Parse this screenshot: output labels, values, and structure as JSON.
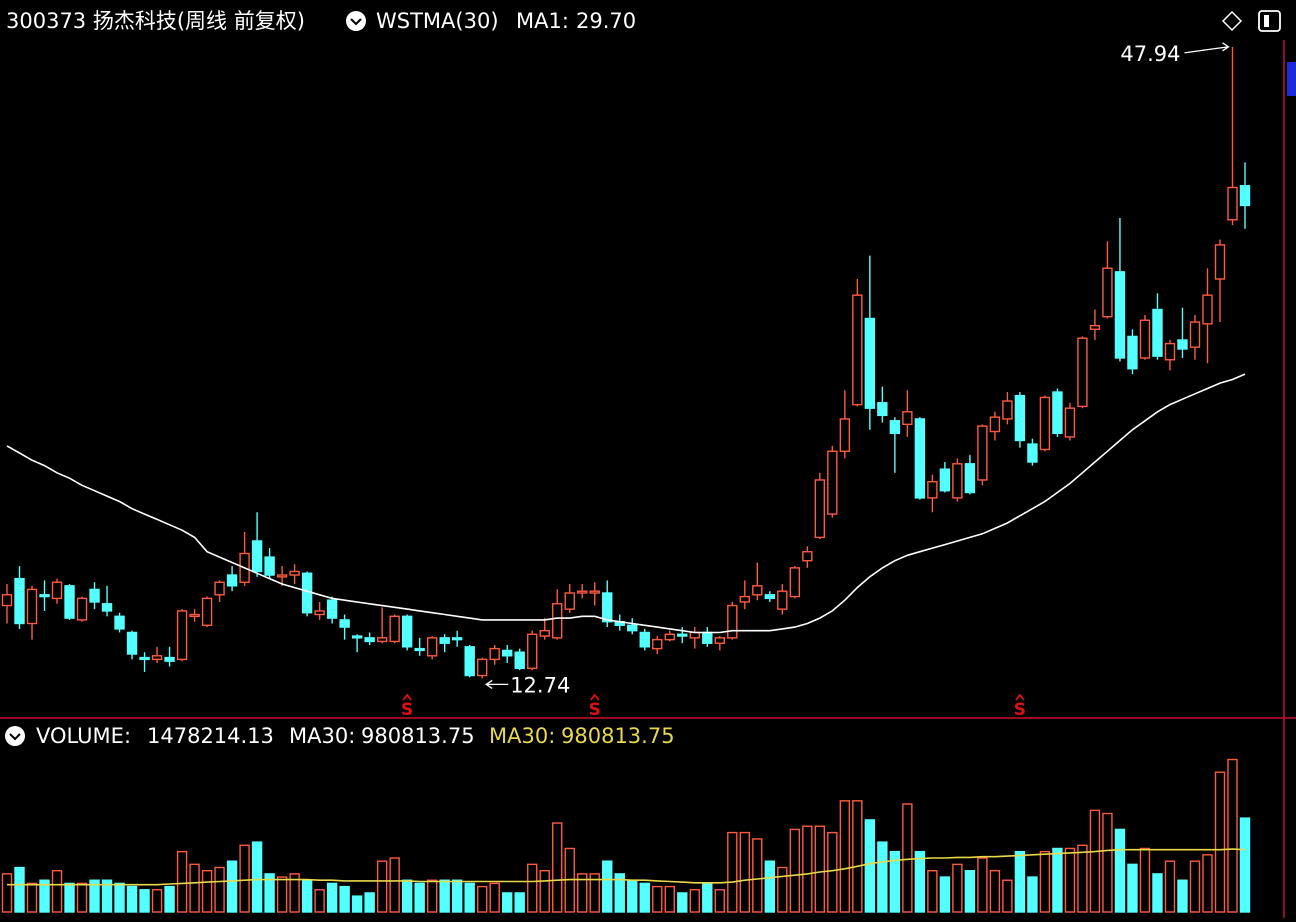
{
  "chart_data": [
    {
      "type": "candlestick",
      "title": "300373 扬杰科技(周线 前复权)",
      "indicator": "WSTMA(30)",
      "ma_name": "MA1:",
      "ma_value_label": "29.70",
      "up_color": "#ff5a3c",
      "down_color": "#54ffff",
      "ma_color": "#ffffff",
      "ylim": [
        10.7,
        48.6
      ],
      "open": [
        16.8,
        18.3,
        15.8,
        17.4,
        17.2,
        17.9,
        16.0,
        17.7,
        16.9,
        16.2,
        15.3,
        13.9,
        13.8,
        13.9,
        13.8,
        16.2,
        15.7,
        17.4,
        18.5,
        18.1,
        20.4,
        19.5,
        18.4,
        18.5,
        18.6,
        16.3,
        17.1,
        16.0,
        15.1,
        15.0,
        14.8,
        14.8,
        16.2,
        14.4,
        14.0,
        15.0,
        15.0,
        14.5,
        12.9,
        13.8,
        14.3,
        14.2,
        13.3,
        15.1,
        15.0,
        16.6,
        17.5,
        17.5,
        17.5,
        15.9,
        15.7,
        15.3,
        14.4,
        14.9,
        15.2,
        15.0,
        15.3,
        14.7,
        15.0,
        17.0,
        17.4,
        17.4,
        16.6,
        17.3,
        19.3,
        20.6,
        21.9,
        25.4,
        28.0,
        32.8,
        28.1,
        27.1,
        26.9,
        27.2,
        22.8,
        24.4,
        22.8,
        24.7,
        23.8,
        26.5,
        27.2,
        28.5,
        25.8,
        25.5,
        28.7,
        26.2,
        27.9,
        32.2,
        32.9,
        35.4,
        31.8,
        30.6,
        33.3,
        30.5,
        31.6,
        31.2,
        32.5,
        35.0,
        38.3,
        40.2
      ],
      "high": [
        18.0,
        19.0,
        17.9,
        18.2,
        18.3,
        18.0,
        17.3,
        18.1,
        17.9,
        16.4,
        15.4,
        14.2,
        14.5,
        14.5,
        16.6,
        16.6,
        17.3,
        18.2,
        19.0,
        20.9,
        22.0,
        20.0,
        19.0,
        19.1,
        18.7,
        17.0,
        17.3,
        16.3,
        15.2,
        15.3,
        16.7,
        16.3,
        16.3,
        15.0,
        15.1,
        15.2,
        15.4,
        14.6,
        13.9,
        14.6,
        14.6,
        14.4,
        15.4,
        16.1,
        17.7,
        18.0,
        18.0,
        18.1,
        18.2,
        16.3,
        16.1,
        15.5,
        15.1,
        15.4,
        15.6,
        15.6,
        15.6,
        15.1,
        17.0,
        18.2,
        19.2,
        17.6,
        18.0,
        19.0,
        20.1,
        24.2,
        25.7,
        28.8,
        35.0,
        36.3,
        29.0,
        27.3,
        28.8,
        27.3,
        24.1,
        24.8,
        25.0,
        25.2,
        26.9,
        27.6,
        28.7,
        28.7,
        26.1,
        28.5,
        28.9,
        28.1,
        31.8,
        33.3,
        37.1,
        38.4,
        32.2,
        33.0,
        34.2,
        31.6,
        33.4,
        33.0,
        35.6,
        37.2,
        47.94,
        41.5
      ],
      "low": [
        15.8,
        15.5,
        14.9,
        16.5,
        16.9,
        16.0,
        15.9,
        16.6,
        16.2,
        15.3,
        13.8,
        13.1,
        13.6,
        13.4,
        13.7,
        15.9,
        15.6,
        17.0,
        17.6,
        17.9,
        18.4,
        18.3,
        17.9,
        18.0,
        16.2,
        16.0,
        15.8,
        14.9,
        14.2,
        14.6,
        14.7,
        14.7,
        14.3,
        14.0,
        13.8,
        14.2,
        14.5,
        12.8,
        12.74,
        13.5,
        13.6,
        13.2,
        13.2,
        14.9,
        14.9,
        16.4,
        17.2,
        16.8,
        15.6,
        15.4,
        15.2,
        14.3,
        14.1,
        14.8,
        14.7,
        14.4,
        14.5,
        14.3,
        14.9,
        16.6,
        17.1,
        17.0,
        16.3,
        17.2,
        18.9,
        20.5,
        21.7,
        25.0,
        27.9,
        26.6,
        27.0,
        24.2,
        26.2,
        22.7,
        22.0,
        23.1,
        22.6,
        23.0,
        23.5,
        26.0,
        26.9,
        25.6,
        24.6,
        25.4,
        26.2,
        26.0,
        27.8,
        31.6,
        32.8,
        30.4,
        29.7,
        30.5,
        30.5,
        29.9,
        30.6,
        30.5,
        30.3,
        32.6,
        38.0,
        37.8
      ],
      "close": [
        17.4,
        15.8,
        17.7,
        17.3,
        18.1,
        16.1,
        17.2,
        17.0,
        16.5,
        15.5,
        14.1,
        13.8,
        14.0,
        13.7,
        16.5,
        16.3,
        17.2,
        18.1,
        17.9,
        19.7,
        18.7,
        18.5,
        18.5,
        18.7,
        16.4,
        16.5,
        16.1,
        15.6,
        15.0,
        14.8,
        15.0,
        16.2,
        14.5,
        14.3,
        15.0,
        14.7,
        14.9,
        12.9,
        13.8,
        14.4,
        14.0,
        13.3,
        15.2,
        15.4,
        16.9,
        17.5,
        17.6,
        17.6,
        15.9,
        15.7,
        15.4,
        14.5,
        14.9,
        15.2,
        15.1,
        15.3,
        14.7,
        15.0,
        16.8,
        17.3,
        17.9,
        17.2,
        17.6,
        18.9,
        19.8,
        23.8,
        25.4,
        27.2,
        34.1,
        27.8,
        27.4,
        26.4,
        27.6,
        22.8,
        23.7,
        23.2,
        24.7,
        23.1,
        26.8,
        27.3,
        28.2,
        26.0,
        24.8,
        28.4,
        26.4,
        27.8,
        31.7,
        32.4,
        35.6,
        30.6,
        30.0,
        32.7,
        30.7,
        31.4,
        31.1,
        32.6,
        34.1,
        36.9,
        40.1,
        39.1
      ],
      "ma": [
        25.7,
        25.3,
        24.9,
        24.6,
        24.2,
        23.9,
        23.5,
        23.2,
        22.9,
        22.6,
        22.2,
        21.9,
        21.6,
        21.3,
        21.0,
        20.6,
        19.8,
        19.5,
        19.2,
        18.9,
        18.6,
        18.3,
        18.0,
        17.8,
        17.6,
        17.4,
        17.2,
        17.1,
        17.0,
        16.9,
        16.8,
        16.7,
        16.6,
        16.5,
        16.4,
        16.3,
        16.2,
        16.1,
        16.0,
        16.0,
        16.0,
        16.0,
        16.0,
        16.0,
        16.1,
        16.1,
        16.2,
        16.2,
        16.0,
        15.9,
        15.8,
        15.7,
        15.6,
        15.5,
        15.4,
        15.3,
        15.3,
        15.3,
        15.4,
        15.4,
        15.4,
        15.4,
        15.5,
        15.6,
        15.8,
        16.1,
        16.5,
        17.1,
        17.8,
        18.4,
        18.9,
        19.3,
        19.6,
        19.8,
        20.0,
        20.2,
        20.4,
        20.6,
        20.8,
        21.1,
        21.4,
        21.8,
        22.2,
        22.6,
        23.1,
        23.6,
        24.2,
        24.8,
        25.4,
        26.0,
        26.6,
        27.1,
        27.6,
        28.0,
        28.3,
        28.6,
        28.9,
        29.2,
        29.4,
        29.7
      ],
      "signals": [
        {
          "index": 32,
          "label": "S"
        },
        {
          "index": 47,
          "label": "S"
        },
        {
          "index": 81,
          "label": "S"
        }
      ]
    },
    {
      "type": "volume",
      "title": "VOLUME:",
      "ma_name": "MA30:",
      "ma_color": "#e8d84a",
      "ylim": [
        0,
        2550000
      ],
      "values": [
        600000,
        700000,
        450000,
        500000,
        650000,
        450000,
        450000,
        500000,
        500000,
        450000,
        400000,
        350000,
        350000,
        400000,
        950000,
        750000,
        650000,
        700000,
        800000,
        1050000,
        1100000,
        600000,
        550000,
        600000,
        500000,
        350000,
        450000,
        400000,
        250000,
        300000,
        800000,
        850000,
        500000,
        450000,
        500000,
        500000,
        500000,
        450000,
        400000,
        450000,
        300000,
        300000,
        750000,
        650000,
        1400000,
        1000000,
        600000,
        600000,
        800000,
        600000,
        500000,
        450000,
        400000,
        400000,
        300000,
        350000,
        450000,
        350000,
        1250000,
        1250000,
        1150000,
        800000,
        700000,
        1300000,
        1350000,
        1350000,
        1250000,
        1750000,
        1750000,
        1450000,
        1100000,
        950000,
        1700000,
        950000,
        650000,
        550000,
        750000,
        650000,
        850000,
        650000,
        500000,
        950000,
        550000,
        950000,
        1000000,
        1000000,
        1050000,
        1600000,
        1550000,
        1300000,
        750000,
        1000000,
        600000,
        800000,
        500000,
        800000,
        900000,
        2200000,
        2400000,
        1478214.13
      ],
      "ma": [
        430000,
        430000,
        430000,
        430000,
        430000,
        430000,
        430000,
        430000,
        430000,
        430000,
        430000,
        430000,
        430000,
        440000,
        450000,
        460000,
        470000,
        480000,
        490000,
        500000,
        510000,
        510000,
        510000,
        510000,
        510000,
        500000,
        500000,
        490000,
        490000,
        490000,
        490000,
        490000,
        490000,
        480000,
        480000,
        480000,
        480000,
        480000,
        480000,
        480000,
        480000,
        480000,
        480000,
        490000,
        500000,
        510000,
        510000,
        510000,
        510000,
        510000,
        500000,
        500000,
        490000,
        480000,
        470000,
        460000,
        460000,
        460000,
        470000,
        500000,
        520000,
        540000,
        560000,
        580000,
        600000,
        630000,
        650000,
        680000,
        720000,
        760000,
        790000,
        810000,
        830000,
        840000,
        850000,
        850000,
        860000,
        860000,
        870000,
        870000,
        880000,
        890000,
        900000,
        910000,
        920000,
        930000,
        940000,
        950000,
        970000,
        980000,
        980000,
        980000,
        980000,
        980000,
        980000,
        980000,
        980000,
        980000,
        990000,
        980813.75
      ]
    }
  ]
}
